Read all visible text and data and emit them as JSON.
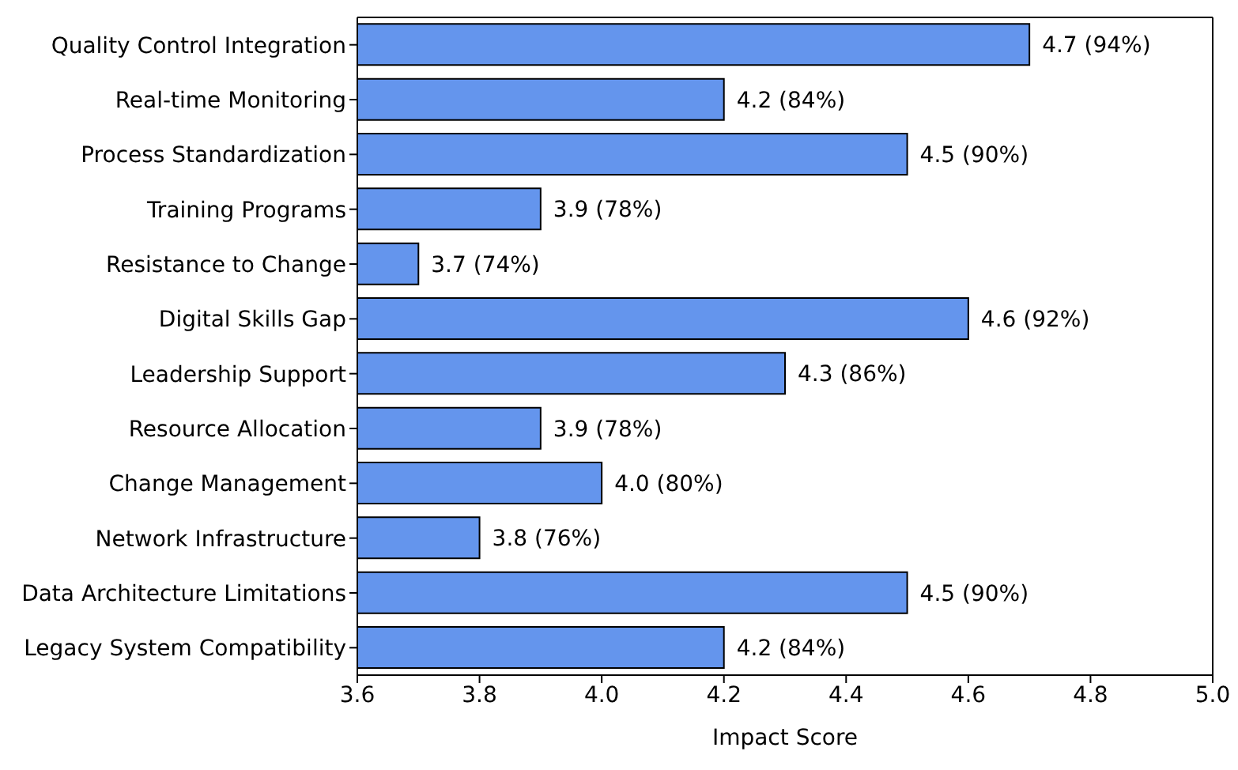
{
  "chart_data": {
    "type": "bar",
    "orientation": "horizontal",
    "xlabel": "Impact Score",
    "categories": [
      "Quality Control Integration",
      "Real-time Monitoring",
      "Process Standardization",
      "Training Programs",
      "Resistance to Change",
      "Digital Skills Gap",
      "Leadership Support",
      "Resource Allocation",
      "Change Management",
      "Network Infrastructure",
      "Data Architecture Limitations",
      "Legacy System Compatibility"
    ],
    "values": [
      4.7,
      4.2,
      4.5,
      3.9,
      3.7,
      4.6,
      4.3,
      3.9,
      4.0,
      3.8,
      4.5,
      4.2
    ],
    "value_labels": [
      "4.7 (94%)",
      "4.2 (84%)",
      "4.5 (90%)",
      "3.9 (78%)",
      "3.7 (74%)",
      "4.6 (92%)",
      "4.3 (86%)",
      "3.9 (78%)",
      "4.0 (80%)",
      "3.8 (76%)",
      "4.5 (90%)",
      "4.2 (84%)"
    ],
    "color": "#6495ed",
    "xlim": [
      3.6,
      5.0
    ],
    "xticks": [
      {
        "value": 3.6,
        "label": "3.6"
      },
      {
        "value": 3.8,
        "label": "3.8"
      },
      {
        "value": 4,
        "label": "4.0"
      },
      {
        "value": 4.2,
        "label": "4.2"
      },
      {
        "value": 4.4,
        "label": "4.4"
      },
      {
        "value": 4.6,
        "label": "4.6"
      },
      {
        "value": 4.8,
        "label": "4.8"
      },
      {
        "value": 5,
        "label": "5.0"
      }
    ]
  }
}
